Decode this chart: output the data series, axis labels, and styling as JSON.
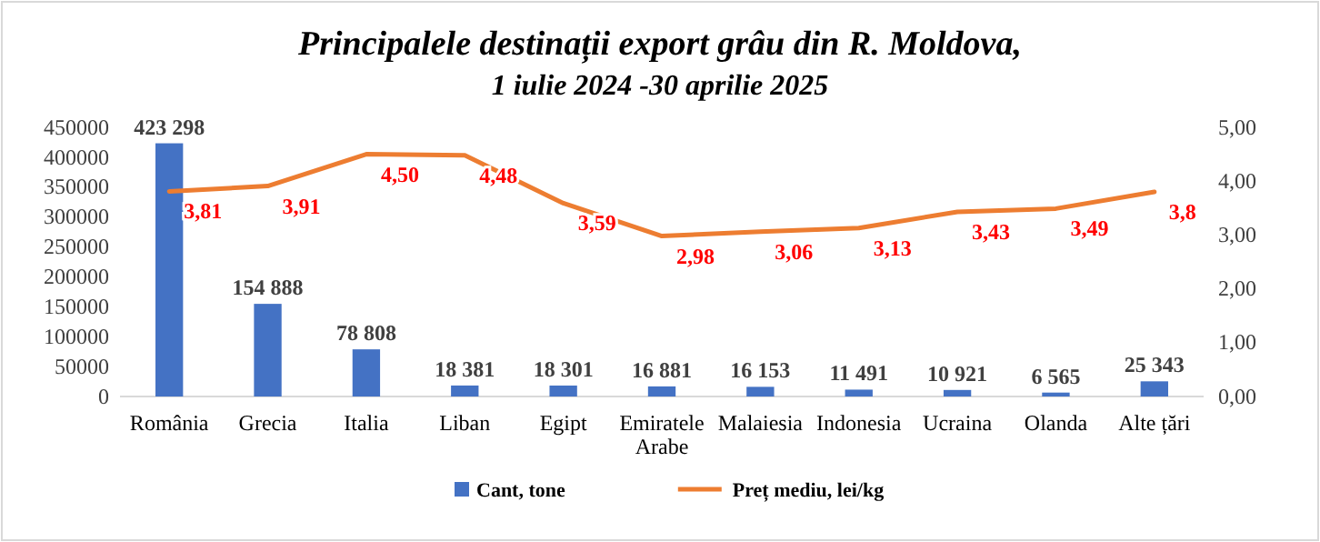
{
  "chart_data": {
    "type": "bar",
    "title": "Principalele destinații export grâu din R. Moldova,",
    "subtitle": "1 iulie 2024 -30 aprilie 2025",
    "categories": [
      "România",
      "Grecia",
      "Italia",
      "Liban",
      "Egipt",
      "Emiratele Arabe",
      "Malaiesia",
      "Indonesia",
      "Ucraina",
      "Olanda",
      "Alte țări"
    ],
    "series": [
      {
        "name": "Cant, tone",
        "color": "#4472c4",
        "values": [
          423298,
          154888,
          78808,
          18381,
          18301,
          16881,
          16153,
          11491,
          10921,
          6565,
          25343
        ],
        "value_labels": [
          "423 298",
          "154 888",
          "78 808",
          "18 381",
          "18 301",
          "16 881",
          "16 153",
          "11 491",
          "10 921",
          "6 565",
          "25 343"
        ]
      },
      {
        "name": "Preț mediu, lei/kg",
        "type": "line",
        "axis": "y2",
        "color": "#ed7d31",
        "values": [
          3.81,
          3.91,
          4.5,
          4.48,
          3.59,
          2.98,
          3.06,
          3.13,
          3.43,
          3.49,
          3.8
        ],
        "value_labels": [
          "3,81",
          "3,91",
          "4,50",
          "4,48",
          "3,59",
          "2,98",
          "3,06",
          "3,13",
          "3,43",
          "3,49",
          "3,8"
        ]
      }
    ],
    "ylim": [
      0,
      450000
    ],
    "yticks": [
      0,
      50000,
      100000,
      150000,
      200000,
      250000,
      300000,
      350000,
      400000,
      450000
    ],
    "y2lim": [
      0,
      5
    ],
    "y2ticks": [
      {
        "value": 0,
        "label": "0,00"
      },
      {
        "value": 1,
        "label": "1,00"
      },
      {
        "value": 2,
        "label": "2,00"
      },
      {
        "value": 3,
        "label": "3,00"
      },
      {
        "value": 4,
        "label": "4,00"
      },
      {
        "value": 5,
        "label": "5,00"
      }
    ],
    "legend": "bottom",
    "grid": false,
    "marker": "none",
    "line_style": "solid"
  }
}
